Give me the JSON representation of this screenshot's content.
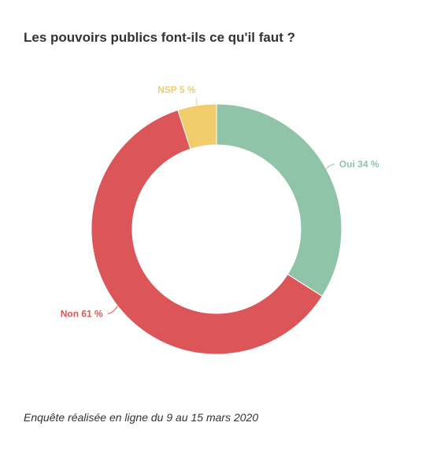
{
  "chart_data": {
    "type": "pie",
    "donut": true,
    "title": "Les pouvoirs publics font-ils ce qu'il faut ?",
    "slices": [
      {
        "label": "Oui",
        "value": 34,
        "display": "Oui 34 %",
        "color": "#8fc4a8"
      },
      {
        "label": "Non",
        "value": 61,
        "display": "Non 61 %",
        "color": "#dc5558"
      },
      {
        "label": "NSP",
        "value": 5,
        "display": "NSP 5 %",
        "color": "#f0cd6a"
      }
    ],
    "start": "top",
    "direction": "clockwise",
    "legend": "none"
  },
  "footer": {
    "note": "Enquête réalisée en ligne du 9 au 15 mars 2020"
  }
}
